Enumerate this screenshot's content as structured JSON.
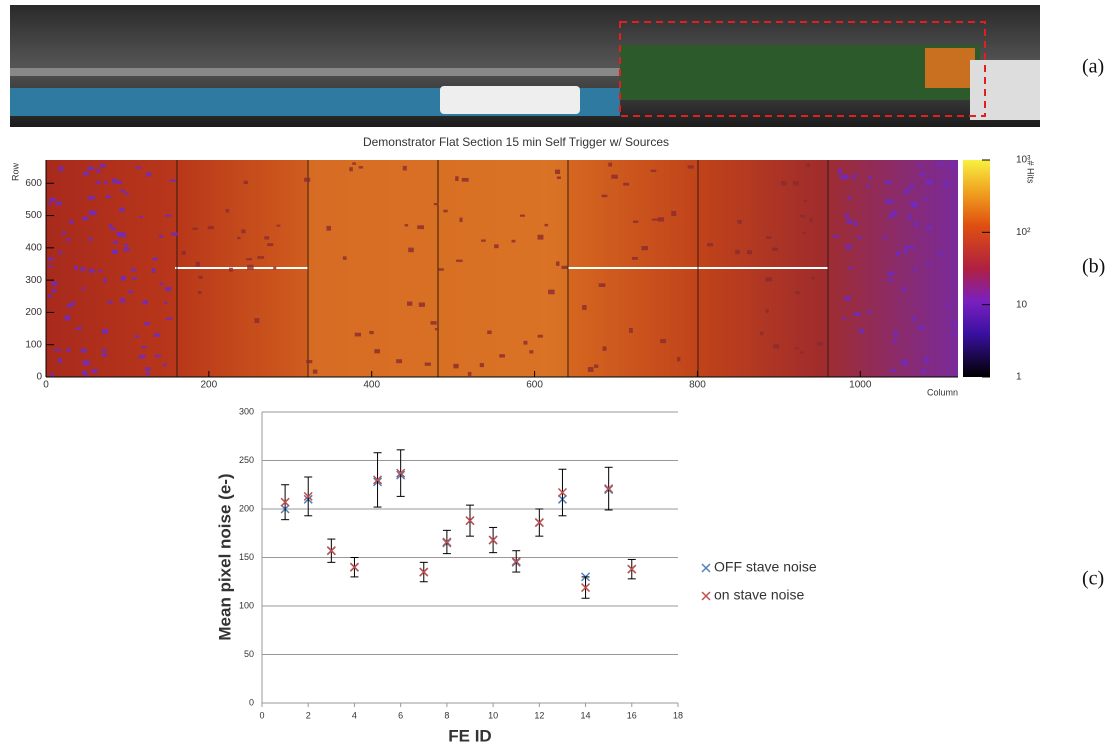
{
  "panel_labels": [
    "(a)",
    "(b)",
    "(c)"
  ],
  "chart_data": [
    {
      "type": "heatmap",
      "title": "Demonstrator Flat Section 15 min Self Trigger w/ Sources",
      "x_label": "Column",
      "y_label": "Row",
      "colorbar_label": "# Hits",
      "xlim": [
        0,
        1120
      ],
      "xticks": [
        0,
        200,
        400,
        600,
        800,
        1000
      ],
      "ylim": [
        0,
        672
      ],
      "yticks": [
        0,
        100,
        200,
        300,
        400,
        500,
        600
      ],
      "clim": [
        1,
        1000
      ],
      "log_color": true,
      "cticks": [
        1,
        10,
        {
          "value": 100,
          "label": "10²"
        },
        {
          "value": 1000,
          "label": "10³"
        }
      ]
    },
    {
      "type": "scatter",
      "x_label": "FE ID",
      "y_label": "Mean pixel noise (e-)",
      "xlim": [
        0,
        18
      ],
      "xticks": [
        0,
        2,
        4,
        6,
        8,
        10,
        12,
        14,
        16,
        18
      ],
      "ylim": [
        0,
        300
      ],
      "yticks": [
        0,
        50,
        100,
        150,
        200,
        250,
        300
      ],
      "grid": true,
      "x": [
        1,
        2,
        3,
        4,
        5,
        6,
        7,
        8,
        9,
        10,
        11,
        12,
        13,
        14,
        15,
        16
      ],
      "series": [
        {
          "name": "OFF stave noise",
          "color": "#4f81bd",
          "values": [
            200,
            210,
            157,
            140,
            228,
            235,
            135,
            165,
            188,
            168,
            145,
            186,
            210,
            130,
            220,
            138
          ]
        },
        {
          "name": "on stave noise",
          "color": "#c0504d",
          "values": [
            207,
            213,
            157,
            140,
            230,
            237,
            135,
            166,
            188,
            168,
            146,
            186,
            217,
            119,
            221,
            138
          ],
          "errors": [
            18,
            20,
            12,
            10,
            28,
            24,
            10,
            12,
            16,
            13,
            11,
            14,
            24,
            11,
            22,
            10
          ]
        }
      ]
    }
  ]
}
